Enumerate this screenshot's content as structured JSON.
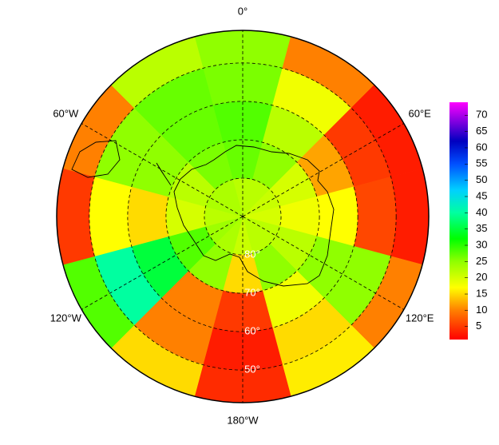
{
  "map": {
    "type": "polar-heatmap",
    "rlim": [
      -90,
      -41.5
    ],
    "sector_width": 30,
    "meridians": [
      0,
      60,
      120,
      180,
      240,
      300
    ],
    "lon_labels": [
      "0°",
      "60°E",
      "120°E",
      "180°W",
      "120°W",
      "60°W"
    ],
    "parallels": [
      -80,
      -70,
      -60,
      -50
    ],
    "lat_labels": [
      "80°",
      "70°",
      "60°",
      "50°"
    ],
    "sector_lons": [
      0,
      30,
      60,
      90,
      120,
      150,
      180,
      210,
      240,
      270,
      300,
      330
    ],
    "rings": [
      {
        "lat": [
          -90,
          -80
        ],
        "values": [
          22,
          22,
          21,
          20,
          22,
          22,
          21,
          23,
          24,
          22,
          23,
          23
        ]
      },
      {
        "lat": [
          -80,
          -70
        ],
        "values": [
          27,
          25,
          20,
          18,
          22,
          25,
          15,
          25,
          28,
          20,
          22,
          26
        ]
      },
      {
        "lat": [
          -70,
          -60
        ],
        "values": [
          28,
          22,
          12,
          17,
          25,
          18,
          5,
          10,
          35,
          15,
          25,
          27
        ]
      },
      {
        "lat": [
          -60,
          -50
        ],
        "values": [
          26,
          18,
          5,
          6,
          25,
          15,
          3,
          10,
          40,
          17,
          25,
          27
        ]
      },
      {
        "lat": [
          -50,
          -41.5
        ],
        "values": [
          25,
          10,
          3,
          3,
          10,
          16,
          4,
          15,
          28,
          5,
          10,
          22
        ]
      }
    ],
    "colorbar": {
      "lim": [
        1,
        74
      ],
      "ticks": [
        5,
        10,
        15,
        20,
        25,
        30,
        35,
        40,
        45,
        50,
        55,
        60,
        65,
        70
      ],
      "scale": [
        {
          "value": 1,
          "color": "#ff0000"
        },
        {
          "value": 10,
          "color": "#ff8000"
        },
        {
          "value": 17,
          "color": "#ffff00"
        },
        {
          "value": 25,
          "color": "#90ff00"
        },
        {
          "value": 32,
          "color": "#00ff00"
        },
        {
          "value": 40,
          "color": "#00ffa0"
        },
        {
          "value": 47,
          "color": "#00d0ff"
        },
        {
          "value": 55,
          "color": "#0050ff"
        },
        {
          "value": 62,
          "color": "#0000c0"
        },
        {
          "value": 68,
          "color": "#8000e0"
        },
        {
          "value": 74,
          "color": "#ff00ff"
        }
      ]
    }
  }
}
